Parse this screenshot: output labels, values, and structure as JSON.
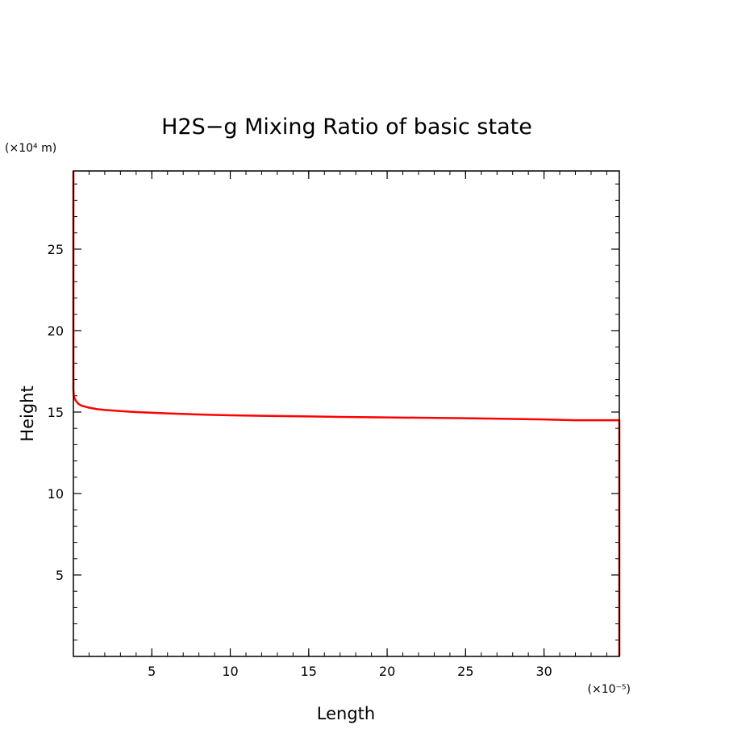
{
  "chart_data": {
    "type": "line",
    "title": "H2S−g Mixing Ratio of basic state",
    "xlabel": "Length",
    "ylabel": "Height",
    "x_scale_label": "(×10⁻⁵)",
    "y_scale_label": "(×10⁴ m)",
    "xlim": [
      0,
      34.8
    ],
    "ylim": [
      0,
      29.8
    ],
    "x_ticks": [
      5,
      10,
      15,
      20,
      25,
      30
    ],
    "y_ticks": [
      5,
      10,
      15,
      20,
      25
    ],
    "x_tick_labels": [
      "5",
      "10",
      "15",
      "20",
      "25",
      "30"
    ],
    "y_tick_labels": [
      "5",
      "10",
      "15",
      "20",
      "25"
    ],
    "grid": false,
    "line_color": "#ff0000",
    "series": [
      {
        "x": [
          34.8,
          34.8,
          34.8,
          32,
          30,
          28,
          25,
          22,
          20,
          17,
          15,
          12,
          10,
          8,
          6,
          4,
          3,
          2,
          1.5,
          1,
          0.5,
          0.3,
          0.15,
          0.05,
          0.02,
          0,
          0,
          0
        ],
        "y": [
          0,
          10,
          14.5,
          14.5,
          14.55,
          14.58,
          14.62,
          14.65,
          14.67,
          14.7,
          14.73,
          14.77,
          14.8,
          14.85,
          14.92,
          15.0,
          15.06,
          15.13,
          15.18,
          15.27,
          15.4,
          15.52,
          15.7,
          15.9,
          16.1,
          16.4,
          20,
          29.8
        ]
      }
    ]
  }
}
